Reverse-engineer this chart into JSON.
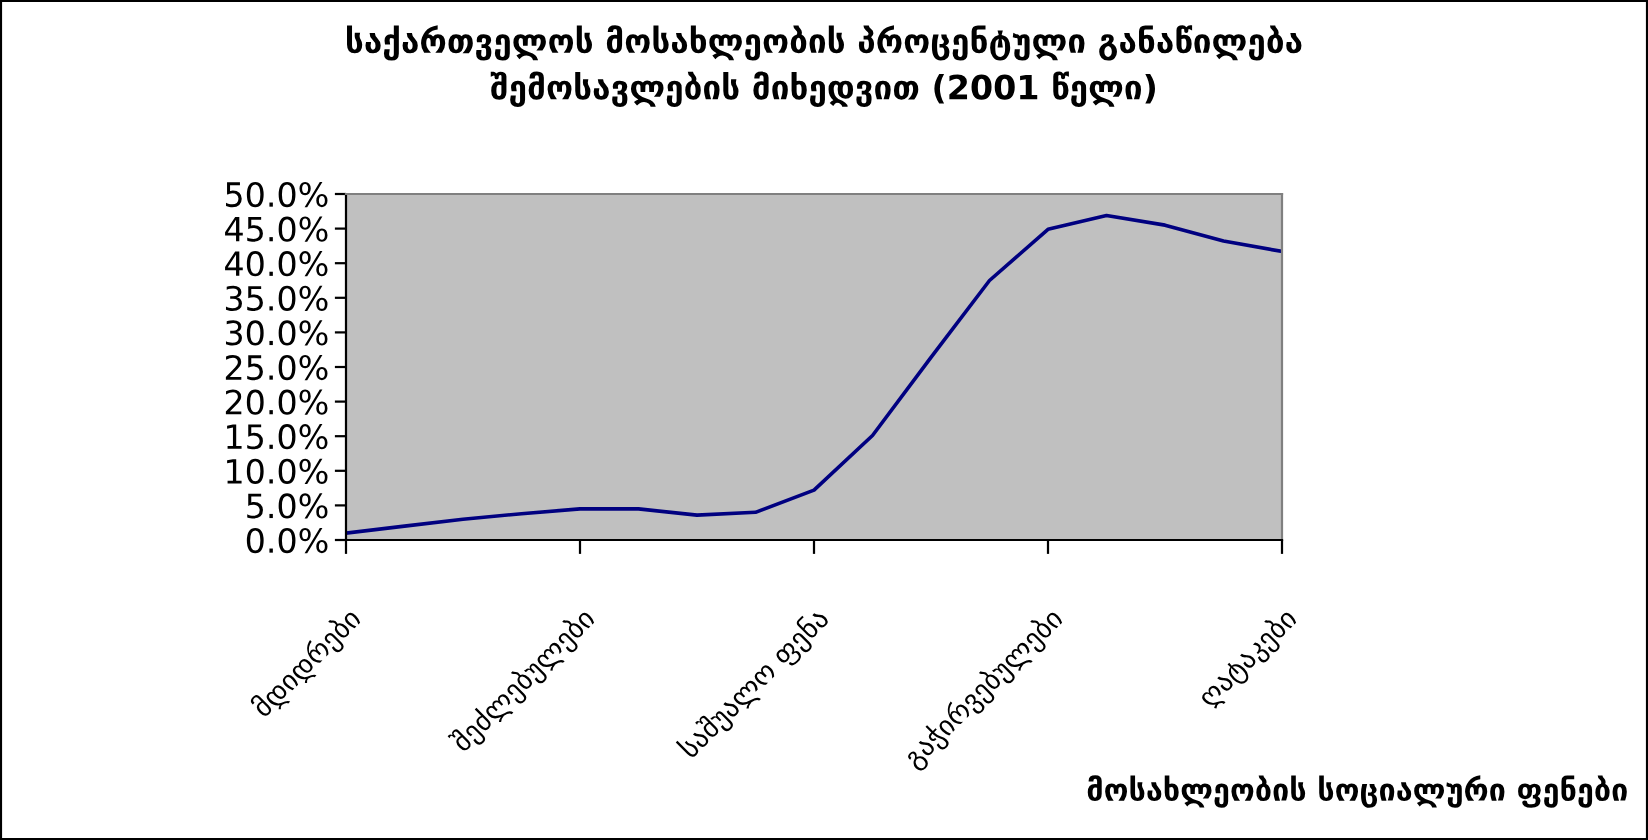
{
  "chart_data": {
    "type": "line",
    "title": "საქართველოს მოსახლეობის პროცენტული განაწილება\nშემოსავლების მიხედვით (2001 წელი)",
    "xlabel": "მოსახლეობის სოციალური ფენები",
    "categories": [
      "მდიდრები",
      null,
      null,
      null,
      "შეძლებულები",
      null,
      null,
      null,
      "საშუალო ფენა",
      null,
      null,
      null,
      "გაჭირვებულები",
      null,
      null,
      null,
      "ღატაკები"
    ],
    "series": [
      {
        "color": "#000080",
        "values": [
          1.0,
          2.0,
          3.0,
          3.8,
          4.5,
          4.5,
          3.6,
          4.0,
          7.2,
          15.1,
          26.4,
          37.5,
          44.9,
          46.9,
          45.5,
          43.2,
          41.7
        ]
      }
    ],
    "ylim": [
      0,
      50
    ],
    "yticks": [
      {
        "value": 0,
        "label": "0.0%"
      },
      {
        "value": 5,
        "label": "5.0%"
      },
      {
        "value": 10,
        "label": "10.0%"
      },
      {
        "value": 15,
        "label": "15.0%"
      },
      {
        "value": 20,
        "label": "20.0%"
      },
      {
        "value": 25,
        "label": "25.0%"
      },
      {
        "value": 30,
        "label": "30.0%"
      },
      {
        "value": 35,
        "label": "35.0%"
      },
      {
        "value": 40,
        "label": "40.0%"
      },
      {
        "value": 45,
        "label": "45.0%"
      },
      {
        "value": 50,
        "label": "50.0%"
      }
    ],
    "grid": false,
    "legend": false
  }
}
